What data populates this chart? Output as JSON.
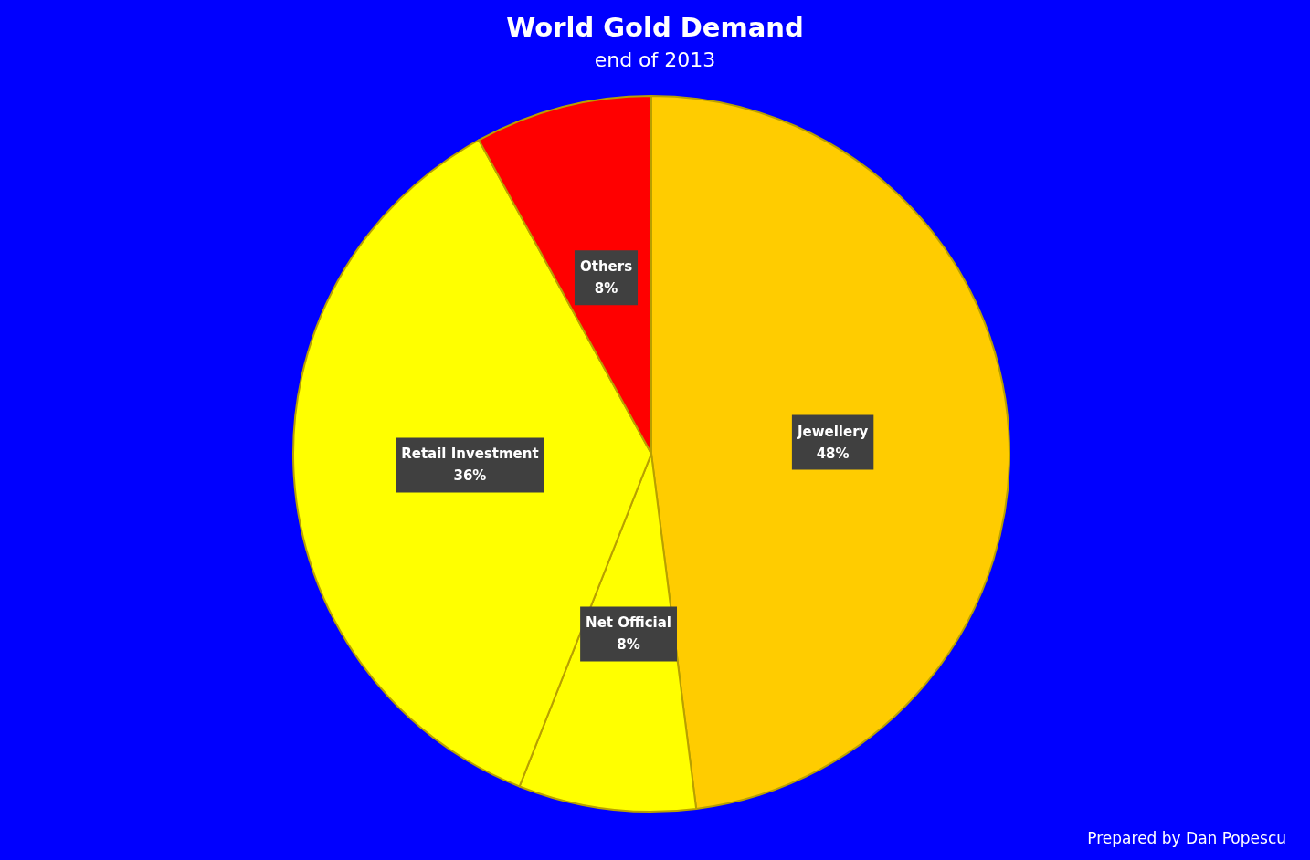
{
  "chart_data": {
    "type": "pie",
    "title": "World Gold Demand",
    "subtitle": "end of 2013",
    "categories": [
      "Jewellery",
      "Net Official",
      "Retail Investment",
      "Others"
    ],
    "values": [
      48,
      8,
      36,
      8
    ],
    "colors": [
      "#ffcc00",
      "#ffff00",
      "#ffff00",
      "#ff0000"
    ],
    "value_labels": [
      "48%",
      "8%",
      "36%",
      "8%"
    ],
    "annotations": [
      "Prepared by Dan Popescu"
    ]
  }
}
